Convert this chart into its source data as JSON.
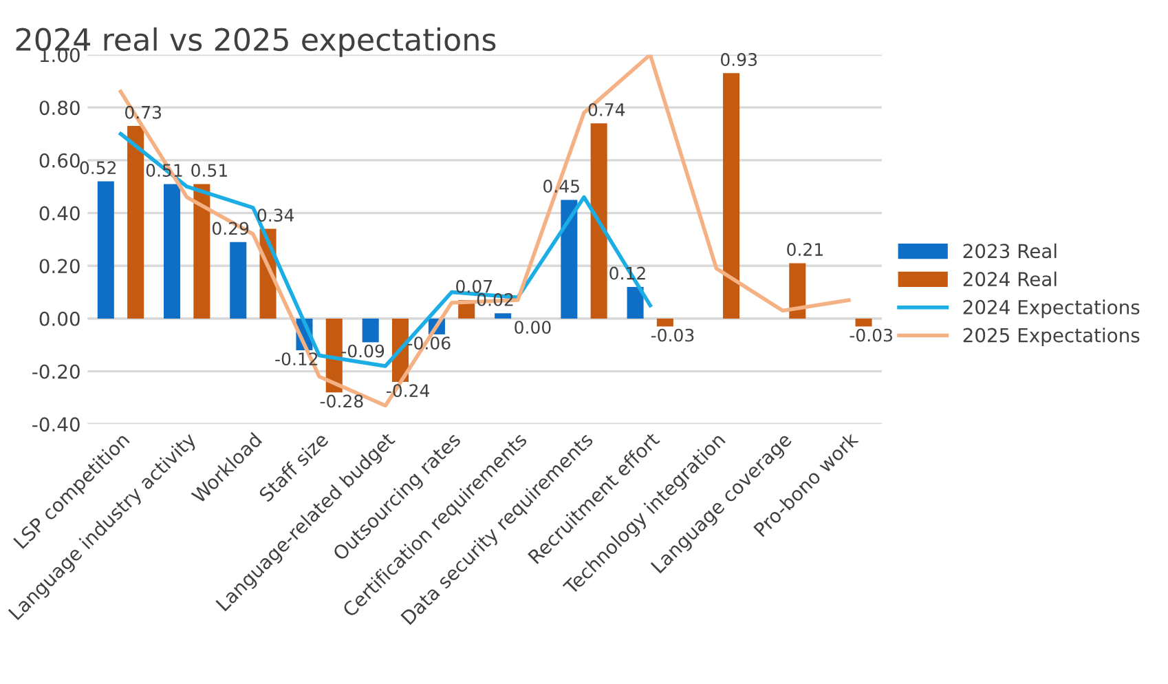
{
  "chart_data": {
    "type": "bar",
    "title": "2024 real vs 2025 expectations",
    "categories": [
      "LSP competition",
      "Language industry activity",
      "Workload",
      "Staff size",
      "Language-related budget",
      "Outsourcing rates",
      "Certification requirements",
      "Data security requirements",
      "Recruitment effort",
      "Technology integration",
      "Language coverage",
      "Pro-bono work"
    ],
    "series": [
      {
        "name": "2023 Real",
        "color": "#0f6fc6",
        "values": [
          0.52,
          0.51,
          0.29,
          -0.12,
          -0.09,
          -0.06,
          0.02,
          0.45,
          0.12,
          null,
          null,
          null
        ],
        "value_labels": [
          "0.52",
          "0.51",
          "0.29",
          "-0.12",
          "-0.09",
          "-0.06",
          "0.02",
          "0.45",
          "0.12",
          null,
          null,
          null
        ]
      },
      {
        "name": "2024 Real",
        "color": "#c55a11",
        "values": [
          0.73,
          0.51,
          0.34,
          -0.28,
          -0.24,
          0.07,
          0.0,
          0.74,
          -0.03,
          0.93,
          0.21,
          -0.03
        ],
        "value_labels": [
          "0.73",
          "0.51",
          "0.34",
          "-0.28",
          "-0.24",
          "0.07",
          "0.00",
          "0.74",
          "-0.03",
          "0.93",
          "0.21",
          "-0.03"
        ]
      },
      {
        "name": "2024 Expectations",
        "type": "line",
        "color": "#1cade4",
        "values": [
          0.7,
          0.5,
          0.42,
          -0.14,
          -0.18,
          0.1,
          0.08,
          0.46,
          0.05,
          null,
          null,
          null
        ]
      },
      {
        "name": "2025 Expectations",
        "type": "line",
        "color": "#f4b183",
        "values": [
          0.86,
          0.46,
          0.32,
          -0.22,
          -0.33,
          0.06,
          0.07,
          0.78,
          1.0,
          0.19,
          0.03,
          0.07
        ]
      }
    ],
    "ylim": [
      -0.4,
      1.0
    ],
    "yticks": [
      {
        "value": -0.4,
        "label": "-0.40"
      },
      {
        "value": -0.2,
        "label": "-0.20"
      },
      {
        "value": 0,
        "label": "0.00"
      },
      {
        "value": 0.2,
        "label": "0.20"
      },
      {
        "value": 0.4,
        "label": "0.40"
      },
      {
        "value": 0.6,
        "label": "0.60"
      },
      {
        "value": 0.8,
        "label": "0.80"
      },
      {
        "value": 1.0,
        "label": "1.00"
      }
    ],
    "grid": "y",
    "legend": "right",
    "marker": "none",
    "line_style": "solid"
  }
}
